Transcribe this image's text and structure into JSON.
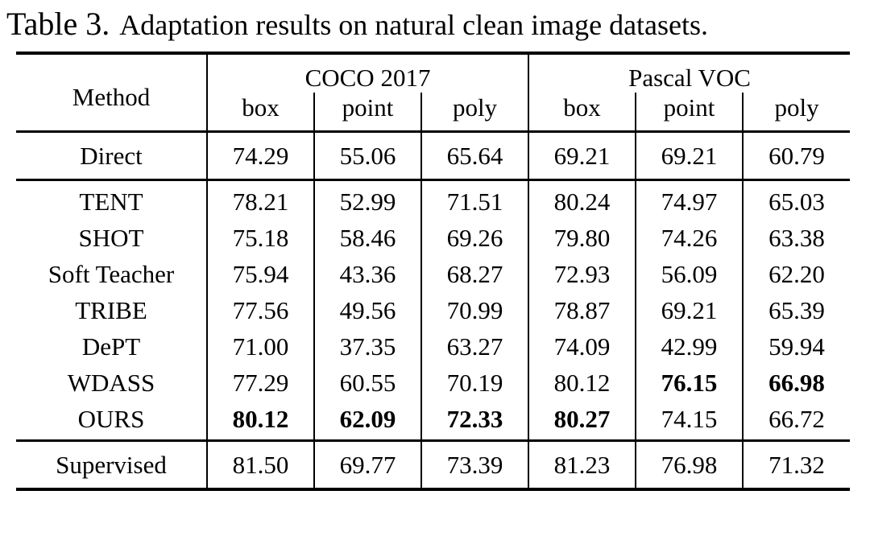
{
  "caption": {
    "label": "Table 3.",
    "text": "Adaptation results on natural clean image datasets."
  },
  "table": {
    "method_header": "Method",
    "groups": [
      {
        "label": "COCO 2017",
        "subcolumns": [
          "box",
          "point",
          "poly"
        ]
      },
      {
        "label": "Pascal VOC",
        "subcolumns": [
          "box",
          "point",
          "poly"
        ]
      }
    ],
    "rows": [
      {
        "method": "Direct",
        "values": [
          "74.29",
          "55.06",
          "65.64",
          "69.21",
          "69.21",
          "60.79"
        ]
      },
      {
        "method": "TENT",
        "values": [
          "78.21",
          "52.99",
          "71.51",
          "80.24",
          "74.97",
          "65.03"
        ]
      },
      {
        "method": "SHOT",
        "values": [
          "75.18",
          "58.46",
          "69.26",
          "79.80",
          "74.26",
          "63.38"
        ]
      },
      {
        "method": "Soft Teacher",
        "values": [
          "75.94",
          "43.36",
          "68.27",
          "72.93",
          "56.09",
          "62.20"
        ]
      },
      {
        "method": "TRIBE",
        "values": [
          "77.56",
          "49.56",
          "70.99",
          "78.87",
          "69.21",
          "65.39"
        ]
      },
      {
        "method": "DePT",
        "values": [
          "71.00",
          "37.35",
          "63.27",
          "74.09",
          "42.99",
          "59.94"
        ]
      },
      {
        "method": "WDASS",
        "values": [
          "77.29",
          "60.55",
          "70.19",
          "80.12",
          "76.15",
          "66.98"
        ]
      },
      {
        "method": "OURS",
        "values": [
          "80.12",
          "62.09",
          "72.33",
          "80.27",
          "74.15",
          "66.72"
        ]
      },
      {
        "method": "Supervised",
        "values": [
          "81.50",
          "69.77",
          "73.39",
          "81.23",
          "76.98",
          "71.32"
        ]
      }
    ],
    "bold_cells": [
      [
        6,
        4
      ],
      [
        6,
        5
      ],
      [
        7,
        0
      ],
      [
        7,
        1
      ],
      [
        7,
        2
      ],
      [
        7,
        3
      ]
    ],
    "colors": {
      "text": "#000000",
      "background": "#ffffff",
      "rule": "#000000"
    }
  }
}
